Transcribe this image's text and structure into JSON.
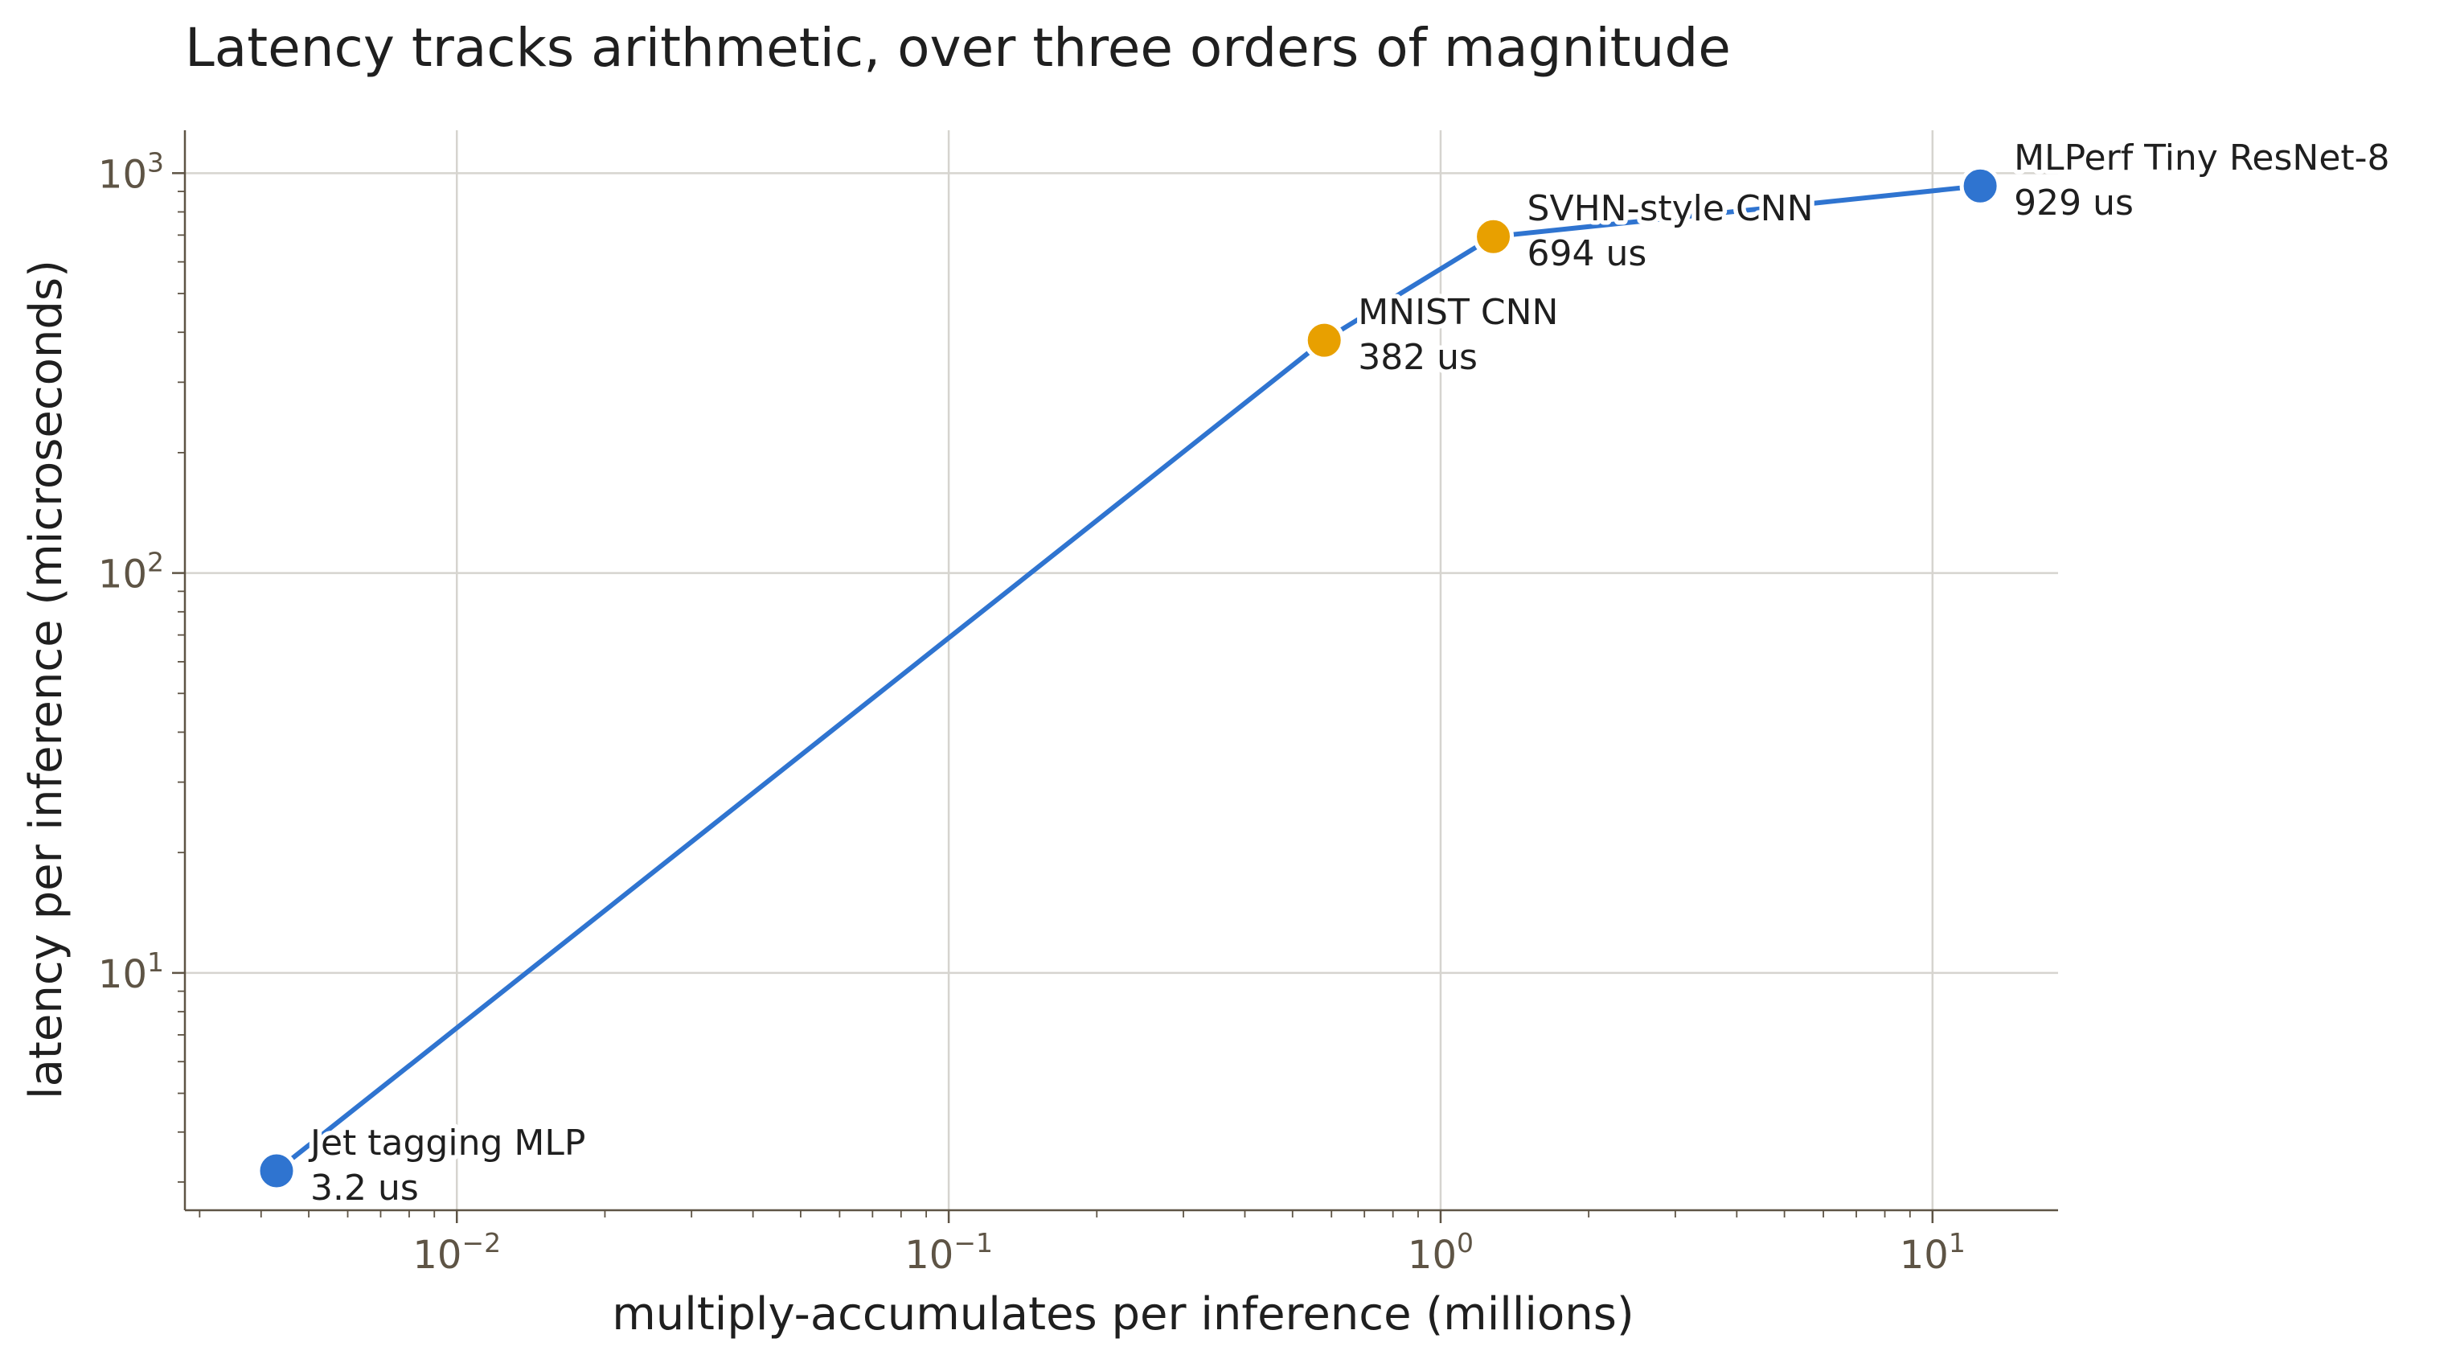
{
  "chart_data": {
    "type": "scatter",
    "title": "Latency tracks arithmetic, over three orders of magnitude",
    "xlabel": "multiply-accumulates per inference (millions)",
    "ylabel": "latency per inference (microseconds)",
    "xscale": "log",
    "yscale": "log",
    "xlim": [
      0.0028,
      18
    ],
    "ylim": [
      2.55,
      1280
    ],
    "grid": true,
    "x_ticks": [
      {
        "base": "10",
        "exp": "−2",
        "value": 0.01
      },
      {
        "base": "10",
        "exp": "−1",
        "value": 0.1
      },
      {
        "base": "10",
        "exp": "0",
        "value": 1
      },
      {
        "base": "10",
        "exp": "1",
        "value": 10
      }
    ],
    "y_ticks": [
      {
        "base": "10",
        "exp": "1",
        "value": 10
      },
      {
        "base": "10",
        "exp": "2",
        "value": 100
      },
      {
        "base": "10",
        "exp": "3",
        "value": 1000
      }
    ],
    "line_color": "#2f74d0",
    "points": [
      {
        "name": "Jet tagging MLP",
        "latency_label": "3.2 us",
        "x": 0.0043,
        "y": 3.2,
        "color": "#2f74d0"
      },
      {
        "name": "MNIST CNN",
        "latency_label": "382 us",
        "x": 0.58,
        "y": 382,
        "color": "#e8a000"
      },
      {
        "name": "SVHN-style CNN",
        "latency_label": "694 us",
        "x": 1.28,
        "y": 694,
        "color": "#e8a000"
      },
      {
        "name": "MLPerf Tiny ResNet-8",
        "latency_label": "929 us",
        "x": 12.5,
        "y": 929,
        "color": "#2f74d0"
      }
    ]
  }
}
